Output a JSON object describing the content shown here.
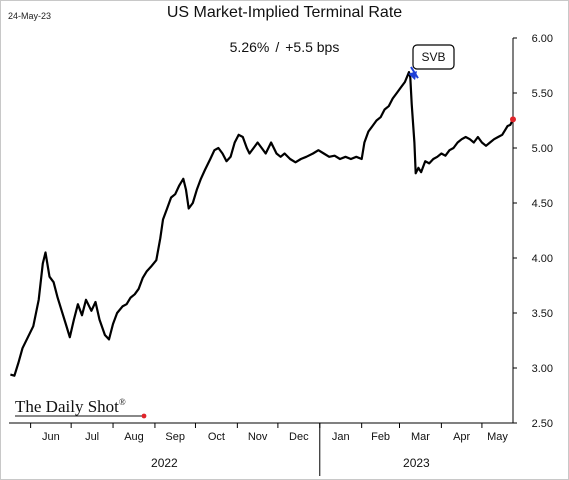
{
  "header": {
    "date": "24-May-23",
    "title": "US Market-Implied Terminal Rate",
    "subtitle_value": "5.26%",
    "subtitle_separator": "/",
    "subtitle_change": "+5.5 bps"
  },
  "logo": {
    "text": "The Daily Shot",
    "mark": "®"
  },
  "colors": {
    "line": "#000000",
    "last_point": "#e0242a",
    "arrow": "#1f3fd6",
    "axis": "#000000"
  },
  "chart_data": {
    "type": "line",
    "title": "US Market-Implied Terminal Rate",
    "ylim": [
      2.5,
      6.0
    ],
    "yticks": [
      "2.50",
      "3.00",
      "3.50",
      "4.00",
      "4.50",
      "5.00",
      "5.50",
      "6.00"
    ],
    "y_axis_side": "right",
    "grid": false,
    "xlabels": [
      "Jun",
      "Jul",
      "Aug",
      "Sep",
      "Oct",
      "Nov",
      "Dec",
      "Jan",
      "Feb",
      "Mar",
      "Apr",
      "May"
    ],
    "year_labels": [
      "2022",
      "2023"
    ],
    "x_start": "2022-05-16",
    "x_end": "2023-05-24",
    "series": [
      {
        "values": [
          [
            "2022-05-17",
            2.94
          ],
          [
            "2022-05-20",
            2.93
          ],
          [
            "2022-05-23",
            3.05
          ],
          [
            "2022-05-26",
            3.18
          ],
          [
            "2022-05-30",
            3.28
          ],
          [
            "2022-06-03",
            3.38
          ],
          [
            "2022-06-07",
            3.62
          ],
          [
            "2022-06-10",
            3.95
          ],
          [
            "2022-06-12",
            4.05
          ],
          [
            "2022-06-15",
            3.83
          ],
          [
            "2022-06-18",
            3.78
          ],
          [
            "2022-06-21",
            3.64
          ],
          [
            "2022-06-24",
            3.52
          ],
          [
            "2022-06-27",
            3.4
          ],
          [
            "2022-06-30",
            3.28
          ],
          [
            "2022-07-03",
            3.44
          ],
          [
            "2022-07-06",
            3.58
          ],
          [
            "2022-07-09",
            3.48
          ],
          [
            "2022-07-12",
            3.62
          ],
          [
            "2022-07-16",
            3.52
          ],
          [
            "2022-07-19",
            3.6
          ],
          [
            "2022-07-22",
            3.44
          ],
          [
            "2022-07-26",
            3.3
          ],
          [
            "2022-07-29",
            3.26
          ],
          [
            "2022-08-01",
            3.4
          ],
          [
            "2022-08-04",
            3.5
          ],
          [
            "2022-08-08",
            3.56
          ],
          [
            "2022-08-11",
            3.58
          ],
          [
            "2022-08-14",
            3.64
          ],
          [
            "2022-08-17",
            3.67
          ],
          [
            "2022-08-20",
            3.72
          ],
          [
            "2022-08-23",
            3.82
          ],
          [
            "2022-08-26",
            3.88
          ],
          [
            "2022-08-29",
            3.92
          ],
          [
            "2022-09-02",
            3.98
          ],
          [
            "2022-09-05",
            4.18
          ],
          [
            "2022-09-07",
            4.35
          ],
          [
            "2022-09-10",
            4.45
          ],
          [
            "2022-09-13",
            4.55
          ],
          [
            "2022-09-16",
            4.58
          ],
          [
            "2022-09-19",
            4.66
          ],
          [
            "2022-09-22",
            4.72
          ],
          [
            "2022-09-24",
            4.62
          ],
          [
            "2022-09-26",
            4.45
          ],
          [
            "2022-09-29",
            4.5
          ],
          [
            "2022-10-02",
            4.62
          ],
          [
            "2022-10-05",
            4.72
          ],
          [
            "2022-10-08",
            4.8
          ],
          [
            "2022-10-12",
            4.9
          ],
          [
            "2022-10-15",
            4.98
          ],
          [
            "2022-10-18",
            5.0
          ],
          [
            "2022-10-21",
            4.95
          ],
          [
            "2022-10-24",
            4.88
          ],
          [
            "2022-10-27",
            4.92
          ],
          [
            "2022-10-30",
            5.05
          ],
          [
            "2022-11-02",
            5.12
          ],
          [
            "2022-11-05",
            5.1
          ],
          [
            "2022-11-08",
            5.0
          ],
          [
            "2022-11-10",
            4.95
          ],
          [
            "2022-11-13",
            5.0
          ],
          [
            "2022-11-16",
            5.05
          ],
          [
            "2022-11-19",
            5.0
          ],
          [
            "2022-11-22",
            4.95
          ],
          [
            "2022-11-26",
            5.05
          ],
          [
            "2022-11-30",
            4.95
          ],
          [
            "2022-12-03",
            4.92
          ],
          [
            "2022-12-06",
            4.95
          ],
          [
            "2022-12-10",
            4.9
          ],
          [
            "2022-12-14",
            4.87
          ],
          [
            "2022-12-18",
            4.9
          ],
          [
            "2022-12-22",
            4.92
          ],
          [
            "2022-12-27",
            4.95
          ],
          [
            "2022-12-31",
            4.98
          ],
          [
            "2023-01-04",
            4.95
          ],
          [
            "2023-01-08",
            4.92
          ],
          [
            "2023-01-12",
            4.93
          ],
          [
            "2023-01-16",
            4.9
          ],
          [
            "2023-01-20",
            4.92
          ],
          [
            "2023-01-24",
            4.9
          ],
          [
            "2023-01-28",
            4.92
          ],
          [
            "2023-02-01",
            4.9
          ],
          [
            "2023-02-03",
            5.05
          ],
          [
            "2023-02-06",
            5.15
          ],
          [
            "2023-02-09",
            5.2
          ],
          [
            "2023-02-12",
            5.25
          ],
          [
            "2023-02-15",
            5.28
          ],
          [
            "2023-02-18",
            5.35
          ],
          [
            "2023-02-21",
            5.38
          ],
          [
            "2023-02-24",
            5.45
          ],
          [
            "2023-02-27",
            5.5
          ],
          [
            "2023-03-02",
            5.55
          ],
          [
            "2023-03-05",
            5.6
          ],
          [
            "2023-03-08",
            5.69
          ],
          [
            "2023-03-09",
            5.64
          ],
          [
            "2023-03-10",
            5.4
          ],
          [
            "2023-03-12",
            5.05
          ],
          [
            "2023-03-13",
            4.77
          ],
          [
            "2023-03-15",
            4.82
          ],
          [
            "2023-03-17",
            4.78
          ],
          [
            "2023-03-20",
            4.88
          ],
          [
            "2023-03-23",
            4.86
          ],
          [
            "2023-03-26",
            4.9
          ],
          [
            "2023-03-29",
            4.92
          ],
          [
            "2023-04-01",
            4.95
          ],
          [
            "2023-04-04",
            4.93
          ],
          [
            "2023-04-07",
            4.98
          ],
          [
            "2023-04-10",
            5.0
          ],
          [
            "2023-04-13",
            5.05
          ],
          [
            "2023-04-16",
            5.08
          ],
          [
            "2023-04-19",
            5.1
          ],
          [
            "2023-04-22",
            5.08
          ],
          [
            "2023-04-25",
            5.05
          ],
          [
            "2023-04-28",
            5.1
          ],
          [
            "2023-05-01",
            5.05
          ],
          [
            "2023-05-04",
            5.02
          ],
          [
            "2023-05-07",
            5.05
          ],
          [
            "2023-05-10",
            5.08
          ],
          [
            "2023-05-13",
            5.1
          ],
          [
            "2023-05-16",
            5.12
          ],
          [
            "2023-05-18",
            5.16
          ],
          [
            "2023-05-20",
            5.2
          ],
          [
            "2023-05-22",
            5.21
          ],
          [
            "2023-05-24",
            5.26
          ]
        ]
      }
    ],
    "annotations": [
      {
        "text": "SVB",
        "date": "2023-03-08"
      }
    ],
    "last_point": {
      "date": "2023-05-24",
      "value": 5.26
    }
  }
}
